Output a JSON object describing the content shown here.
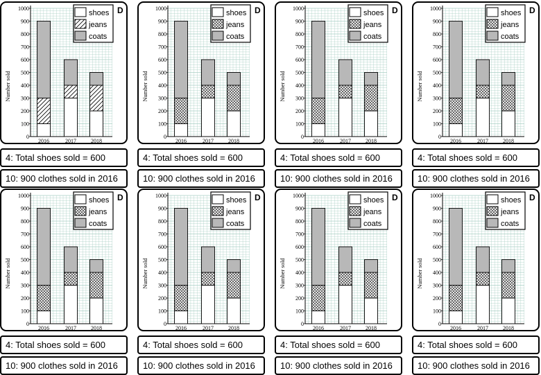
{
  "chart_data": {
    "type": "bar",
    "stacked": true,
    "title": "",
    "xlabel": "",
    "ylabel": "Number sold",
    "ylim": [
      0,
      1000
    ],
    "yticks": [
      0,
      100,
      200,
      300,
      400,
      500,
      600,
      700,
      800,
      900,
      1000
    ],
    "categories": [
      "2016",
      "2017",
      "2018"
    ],
    "series": [
      {
        "name": "shoes",
        "values": [
          100,
          300,
          200
        ]
      },
      {
        "name": "jeans",
        "values": [
          200,
          100,
          200
        ]
      },
      {
        "name": "coats",
        "values": [
          600,
          200,
          100
        ]
      }
    ],
    "legend_position": "top-right"
  },
  "cards": [
    {
      "badge": "D",
      "statement_1": "4: Total shoes sold = 600",
      "statement_2": "10: 900 clothes sold in 2016"
    },
    {
      "badge": "D",
      "statement_1": "4: Total shoes sold = 600",
      "statement_2": "10: 900 clothes sold in 2016"
    },
    {
      "badge": "D",
      "statement_1": "4: Total shoes sold = 600",
      "statement_2": "10: 900 clothes sold in 2016"
    },
    {
      "badge": "D",
      "statement_1": "4: Total shoes sold = 600",
      "statement_2": "10: 900 clothes sold in 2016"
    },
    {
      "badge": "D",
      "statement_1": "4: Total shoes sold = 600",
      "statement_2": "10: 900 clothes sold in 2016"
    },
    {
      "badge": "D",
      "statement_1": "4: Total shoes sold = 600",
      "statement_2": "10: 900 clothes sold in 2016"
    },
    {
      "badge": "D",
      "statement_1": "4: Total shoes sold = 600",
      "statement_2": "10: 900 clothes sold in 2016"
    },
    {
      "badge": "D",
      "statement_1": "4: Total shoes sold = 600",
      "statement_2": "10: 900 clothes sold in 2016"
    }
  ],
  "colors": {
    "coats": "#b8b8b8",
    "shoes": "#ffffff",
    "grid": "#a9cfc4",
    "ink": "#000000"
  }
}
